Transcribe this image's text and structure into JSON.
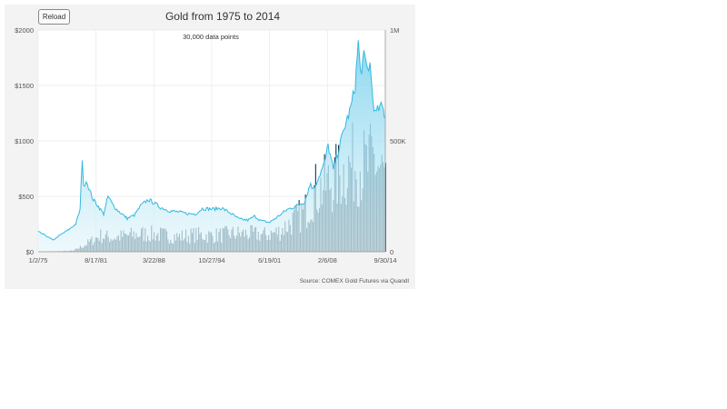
{
  "toolbar": {
    "reload_label": "Reload"
  },
  "chart": {
    "title": "Gold from 1975 to 2014",
    "subtitle": "30,000 data points",
    "source": "Source: COMEX Gold Futures via Quandl"
  },
  "colors": {
    "background": "#f3f3f3",
    "plot_background": "#ffffff",
    "price_line": "#35b8e0",
    "volume_bar": "#0e3a4e"
  },
  "chart_data": {
    "type": "area",
    "title": "Gold from 1975 to 2014",
    "subtitle": "30,000 data points",
    "x_ticks": [
      "1/2/75",
      "8/17/81",
      "3/22/88",
      "10/27/94",
      "6/19/01",
      "2/6/08",
      "9/30/14"
    ],
    "x_range": [
      "1975-01-02",
      "2014-09-30"
    ],
    "y_left": {
      "ticks": [
        "$0",
        "$500",
        "$1000",
        "$1500",
        "$2000"
      ],
      "range": [
        0,
        2000
      ]
    },
    "y_right": {
      "ticks": [
        "0",
        "500K",
        "1M"
      ],
      "range": [
        0,
        1000000
      ]
    },
    "grid": true,
    "series": [
      {
        "type": "area-line",
        "axis": "left",
        "points": [
          [
            1975.0,
            180
          ],
          [
            1976.0,
            140
          ],
          [
            1976.7,
            105
          ],
          [
            1977.5,
            150
          ],
          [
            1978.5,
            200
          ],
          [
            1979.3,
            250
          ],
          [
            1979.8,
            380
          ],
          [
            1980.05,
            850
          ],
          [
            1980.2,
            580
          ],
          [
            1980.5,
            650
          ],
          [
            1980.9,
            550
          ],
          [
            1981.3,
            470
          ],
          [
            1981.8,
            420
          ],
          [
            1982.5,
            340
          ],
          [
            1983.0,
            500
          ],
          [
            1983.5,
            430
          ],
          [
            1984.0,
            380
          ],
          [
            1984.6,
            340
          ],
          [
            1985.2,
            300
          ],
          [
            1986.0,
            330
          ],
          [
            1986.8,
            420
          ],
          [
            1987.6,
            470
          ],
          [
            1988.3,
            440
          ],
          [
            1989.0,
            400
          ],
          [
            1990.0,
            370
          ],
          [
            1991.0,
            360
          ],
          [
            1992.0,
            345
          ],
          [
            1993.0,
            340
          ],
          [
            1993.8,
            390
          ],
          [
            1995.0,
            385
          ],
          [
            1996.0,
            395
          ],
          [
            1997.0,
            350
          ],
          [
            1998.0,
            295
          ],
          [
            1999.0,
            285
          ],
          [
            1999.8,
            320
          ],
          [
            2000.5,
            280
          ],
          [
            2001.5,
            265
          ],
          [
            2002.5,
            320
          ],
          [
            2003.5,
            380
          ],
          [
            2004.5,
            410
          ],
          [
            2005.5,
            450
          ],
          [
            2006.2,
            620
          ],
          [
            2006.5,
            560
          ],
          [
            2007.0,
            650
          ],
          [
            2007.8,
            800
          ],
          [
            2008.2,
            960
          ],
          [
            2008.8,
            740
          ],
          [
            2009.5,
            950
          ],
          [
            2010.0,
            1100
          ],
          [
            2010.8,
            1300
          ],
          [
            2011.3,
            1500
          ],
          [
            2011.65,
            1890
          ],
          [
            2011.9,
            1620
          ],
          [
            2012.3,
            1750
          ],
          [
            2012.7,
            1650
          ],
          [
            2013.0,
            1690
          ],
          [
            2013.3,
            1400
          ],
          [
            2013.6,
            1240
          ],
          [
            2014.0,
            1290
          ],
          [
            2014.4,
            1310
          ],
          [
            2014.75,
            1210
          ]
        ]
      },
      {
        "type": "bar",
        "axis": "right",
        "points": [
          [
            1975.0,
            0
          ],
          [
            1979.0,
            5000
          ],
          [
            1980.5,
            40000
          ],
          [
            1982.0,
            80000
          ],
          [
            1983.5,
            70000
          ],
          [
            1985.0,
            80000
          ],
          [
            1987.0,
            90000
          ],
          [
            1989.0,
            85000
          ],
          [
            1991.0,
            75000
          ],
          [
            1993.0,
            85000
          ],
          [
            1995.0,
            80000
          ],
          [
            1997.0,
            90000
          ],
          [
            1999.0,
            90000
          ],
          [
            2001.0,
            85000
          ],
          [
            2002.5,
            100000
          ],
          [
            2004.0,
            150000
          ],
          [
            2005.5,
            200000
          ],
          [
            2006.5,
            300000
          ],
          [
            2007.5,
            320000
          ],
          [
            2008.5,
            350000
          ],
          [
            2009.5,
            380000
          ],
          [
            2010.5,
            420000
          ],
          [
            2011.5,
            450000
          ],
          [
            2012.5,
            420000
          ],
          [
            2013.5,
            460000
          ],
          [
            2014.5,
            380000
          ],
          [
            2014.75,
            360000
          ]
        ]
      }
    ]
  }
}
